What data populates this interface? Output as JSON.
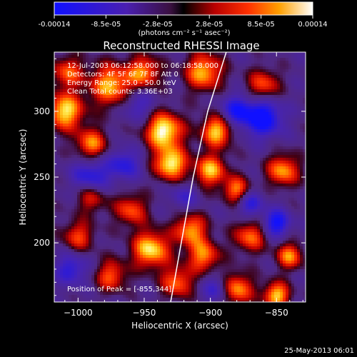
{
  "colorbar": {
    "ticks": [
      "-0.00014",
      "-8.5e-05",
      "-2.8e-05",
      "2.8e-05",
      "8.5e-05",
      "0.00014"
    ],
    "unit_label": "(photons cm⁻² s⁻¹ asec⁻²)"
  },
  "chart_data": {
    "type": "heatmap",
    "title": "Reconstructed RHESSI Image",
    "xlabel": "Heliocentric X (arcsec)",
    "ylabel": "Heliocentric Y (arcsec)",
    "xlim": [
      -1018,
      -828
    ],
    "ylim": [
      155,
      345
    ],
    "x_ticks": [
      -1000,
      -950,
      -900,
      -850
    ],
    "y_ticks": [
      200,
      250,
      300
    ],
    "x_tick_labels": [
      "−1000",
      "−950",
      "−900",
      "−850"
    ],
    "y_tick_labels": [
      "200",
      "250",
      "300"
    ],
    "value_range": [
      -0.00014,
      0.00014
    ],
    "colormap": "rhessi-blue-purple-red-yellow-white",
    "limb_curve": {
      "points": [
        [
          -930,
          155
        ],
        [
          -922,
          200
        ],
        [
          -913,
          250
        ],
        [
          -902,
          300
        ],
        [
          -888,
          345
        ]
      ],
      "color": "#ffffff"
    },
    "annotations": {
      "time_range": "12-Jul-2003 06:12:58.000 to 06:18:58.000",
      "detectors": "Detectors: 4F 5F 6F 7F 8F  Att 0",
      "energy": "Energy Range: 25.0 - 50.0 keV",
      "clean": "Clean    Total counts: 3.36E+03",
      "peak": "Position of Peak = [-855,344]"
    }
  },
  "footer": {
    "timestamp": "25-May-2013 06:01"
  }
}
